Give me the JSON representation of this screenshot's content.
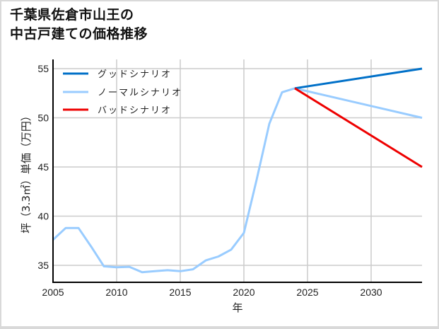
{
  "title": {
    "line1": "千葉県佐倉市山王の",
    "line2": "中古戸建ての価格推移"
  },
  "chart_data": {
    "type": "line",
    "title": "千葉県佐倉市山王の中古戸建ての価格推移",
    "xlabel": "年",
    "ylabel": "坪（3.3㎡）単価（万円）",
    "xlim": [
      2005,
      2034
    ],
    "ylim": [
      33.3,
      56.2
    ],
    "xticks": [
      "2005",
      "2010",
      "2015",
      "2020",
      "2025",
      "2030"
    ],
    "yticks": [
      "35",
      "40",
      "45",
      "50",
      "55"
    ],
    "grid": true,
    "legend_position": "upper left",
    "series": [
      {
        "name": "グッドシナリオ",
        "color": "#0070c8",
        "x": [
          2024,
          2034
        ],
        "values": [
          53.0,
          55.0
        ]
      },
      {
        "name": "ノーマルシナリオ",
        "color": "#99ccff",
        "x": [
          2005,
          2006,
          2007,
          2008,
          2009,
          2010,
          2011,
          2012,
          2013,
          2014,
          2015,
          2016,
          2017,
          2018,
          2019,
          2020,
          2021,
          2022,
          2023,
          2024,
          2034
        ],
        "values": [
          37.6,
          38.8,
          38.8,
          36.9,
          34.9,
          34.8,
          34.85,
          34.3,
          34.4,
          34.5,
          34.4,
          34.6,
          35.5,
          35.9,
          36.6,
          38.3,
          43.7,
          49.4,
          52.6,
          53.0,
          50.0
        ]
      },
      {
        "name": "バッドシナリオ",
        "color": "#ee0000",
        "x": [
          2024,
          2034
        ],
        "values": [
          53.0,
          45.0
        ]
      }
    ]
  }
}
